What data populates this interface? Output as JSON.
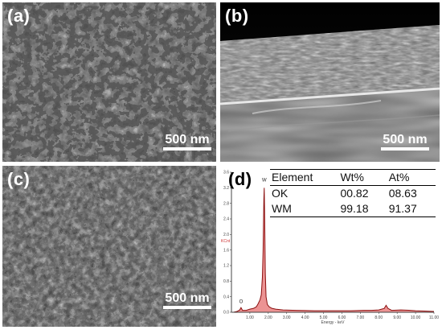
{
  "panels": {
    "a": {
      "label": "(a)",
      "scale_bar": "500 nm"
    },
    "b": {
      "label": "(b)",
      "scale_bar": "500 nm"
    },
    "c": {
      "label": "(c)",
      "scale_bar": "500 nm"
    },
    "d": {
      "label": "(d)"
    }
  },
  "eds_table": {
    "headers": [
      "Element",
      "Wt%",
      "At%"
    ],
    "rows": [
      [
        "OK",
        "00.82",
        "08.63"
      ],
      [
        "WM",
        "99.18",
        "91.37"
      ]
    ]
  },
  "chart_data": {
    "type": "line",
    "xlabel": "Energy - keV",
    "ylabel": "KCnt",
    "xlim": [
      0,
      11
    ],
    "ylim": [
      0,
      3.6
    ],
    "x_ticks": [
      "1.00",
      "2.00",
      "3.00",
      "4.00",
      "5.00",
      "6.00",
      "7.00",
      "8.00",
      "9.00",
      "10.00",
      "11.00"
    ],
    "y_ticks": [
      "0.0",
      "0.4",
      "0.8",
      "1.2",
      "1.6",
      "2.0",
      "2.4",
      "2.8",
      "3.2",
      "3.6"
    ],
    "peak_labels": [
      {
        "label": "W",
        "x": 1.78,
        "y": 3.3
      },
      {
        "label": "O",
        "x": 0.52,
        "y": 0.18
      }
    ],
    "series": [
      {
        "color": "#8b1010",
        "x": [
          0.1,
          0.3,
          0.45,
          0.52,
          0.6,
          0.8,
          1.0,
          1.2,
          1.35,
          1.45,
          1.55,
          1.62,
          1.68,
          1.72,
          1.76,
          1.78,
          1.8,
          1.84,
          1.88,
          1.95,
          2.05,
          2.2,
          2.4,
          2.8,
          3.5,
          4.5,
          5.5,
          6.5,
          7.2,
          7.6,
          8.0,
          8.3,
          8.4,
          8.5,
          8.7,
          9.2,
          9.7,
          10.0,
          10.5,
          11.0
        ],
        "y": [
          0.0,
          0.02,
          0.06,
          0.12,
          0.05,
          0.05,
          0.08,
          0.1,
          0.14,
          0.22,
          0.32,
          0.45,
          0.9,
          1.6,
          2.9,
          3.2,
          2.6,
          1.0,
          0.4,
          0.2,
          0.14,
          0.1,
          0.08,
          0.06,
          0.05,
          0.04,
          0.04,
          0.04,
          0.05,
          0.05,
          0.06,
          0.1,
          0.18,
          0.1,
          0.05,
          0.06,
          0.05,
          0.04,
          0.03,
          0.02
        ]
      }
    ]
  }
}
